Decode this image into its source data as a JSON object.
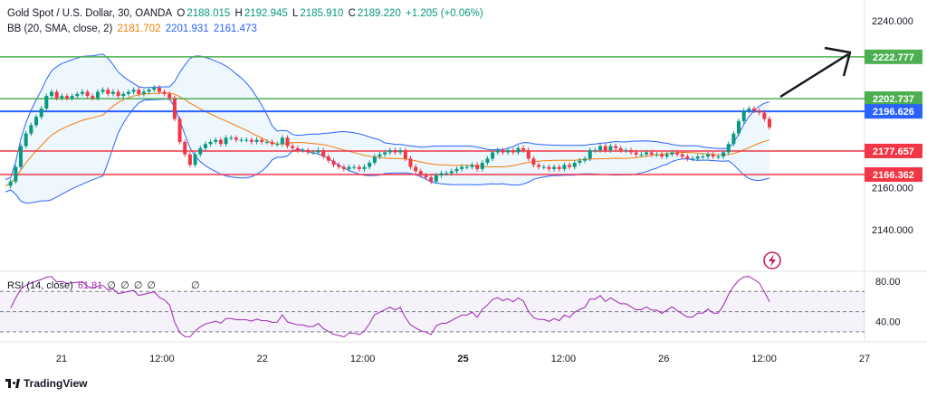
{
  "legend": {
    "symbol": "Gold Spot / U.S. Dollar, 30, OANDA",
    "open_label": "O",
    "open": "2188.015",
    "high_label": "H",
    "high": "2192.945",
    "low_label": "L",
    "low": "2185.910",
    "close_label": "C",
    "close": "2189.220",
    "change": "+1.205 (+0.06%)",
    "bb_label": "BB (20, SMA, close, 2)",
    "bb_basis": "2181.702",
    "bb_upper": "2201.931",
    "bb_lower": "2161.473",
    "rsi_label": "RSI (14, close)",
    "rsi_value": "61.81",
    "rsi_extras": [
      "∅",
      "∅",
      "∅",
      "∅"
    ],
    "rsi_extra2": "∅"
  },
  "colors": {
    "up": "#089981",
    "down": "#f23645",
    "bb_fill": "#2196f3",
    "bb_line": "#2962ff",
    "basis": "#f57c00",
    "green_line": "#4caf50",
    "red_line": "#f23645",
    "blue_line": "#2962ff",
    "rsi_line": "#9c27b0",
    "arrow": "#131722"
  },
  "brand": {
    "name": "TradingView"
  },
  "icons": {
    "lightning": "lightning-icon",
    "logo": "tradingview-logo-icon"
  },
  "chart_data": {
    "type": "candlestick",
    "price_axis": {
      "min": 2120,
      "max": 2250,
      "ticks": [
        2240,
        2160,
        2140
      ],
      "tick_labels": [
        "2240.000",
        "2160.000",
        "2140.000"
      ]
    },
    "time_axis": {
      "labels": [
        "21",
        "12:00",
        "22",
        "12:00",
        "25",
        "12:00",
        "26",
        "12:00",
        "27"
      ]
    },
    "levels": [
      {
        "label": "2222.777",
        "price": 2222.777,
        "kind": "green"
      },
      {
        "label": "2202.737",
        "price": 2202.737,
        "kind": "green"
      },
      {
        "label": "2196.626",
        "price": 2196.626,
        "kind": "blue"
      },
      {
        "label": "2177.657",
        "price": 2177.657,
        "kind": "red"
      },
      {
        "label": "2166.362",
        "price": 2166.362,
        "kind": "red"
      }
    ],
    "closes": [
      2161,
      2163,
      2170,
      2180,
      2186,
      2190,
      2194,
      2198,
      2204,
      2206,
      2203,
      2204,
      2203,
      2204,
      2205,
      2206,
      2204,
      2203,
      2206,
      2207,
      2205,
      2206,
      2204,
      2205,
      2206,
      2207,
      2205,
      2206,
      2207,
      2208,
      2206,
      2205,
      2203,
      2193,
      2182,
      2176,
      2171,
      2176,
      2179,
      2181,
      2182,
      2183,
      2181,
      2184,
      2184,
      2183,
      2183,
      2183,
      2182,
      2183,
      2182,
      2182,
      2181,
      2181,
      2184,
      2180,
      2179,
      2178,
      2178,
      2177,
      2177,
      2178,
      2175,
      2173,
      2171,
      2170,
      2169,
      2170,
      2170,
      2169,
      2170,
      2172,
      2175,
      2176,
      2177,
      2178,
      2177,
      2178,
      2174,
      2170,
      2168,
      2166,
      2165,
      2163,
      2166,
      2167,
      2167,
      2168,
      2169,
      2170,
      2170,
      2171,
      2169,
      2172,
      2174,
      2177,
      2178,
      2177,
      2178,
      2177,
      2179,
      2178,
      2174,
      2171,
      2170,
      2170,
      2169,
      2170,
      2169,
      2171,
      2170,
      2172,
      2173,
      2174,
      2178,
      2178,
      2180,
      2178,
      2180,
      2179,
      2178,
      2178,
      2177,
      2176,
      2176,
      2177,
      2176,
      2176,
      2175,
      2176,
      2177,
      2176,
      2175,
      2174,
      2174,
      2175,
      2175,
      2176,
      2175,
      2175,
      2177,
      2181,
      2186,
      2192,
      2197,
      2198,
      2197,
      2196,
      2193,
      2189
    ],
    "rsi": {
      "min": 20,
      "max": 90,
      "ticks": [
        80,
        40
      ],
      "tick_labels": [
        "80.00",
        "40.00"
      ],
      "bands": [
        70,
        50,
        30
      ],
      "last": 61.81
    }
  }
}
